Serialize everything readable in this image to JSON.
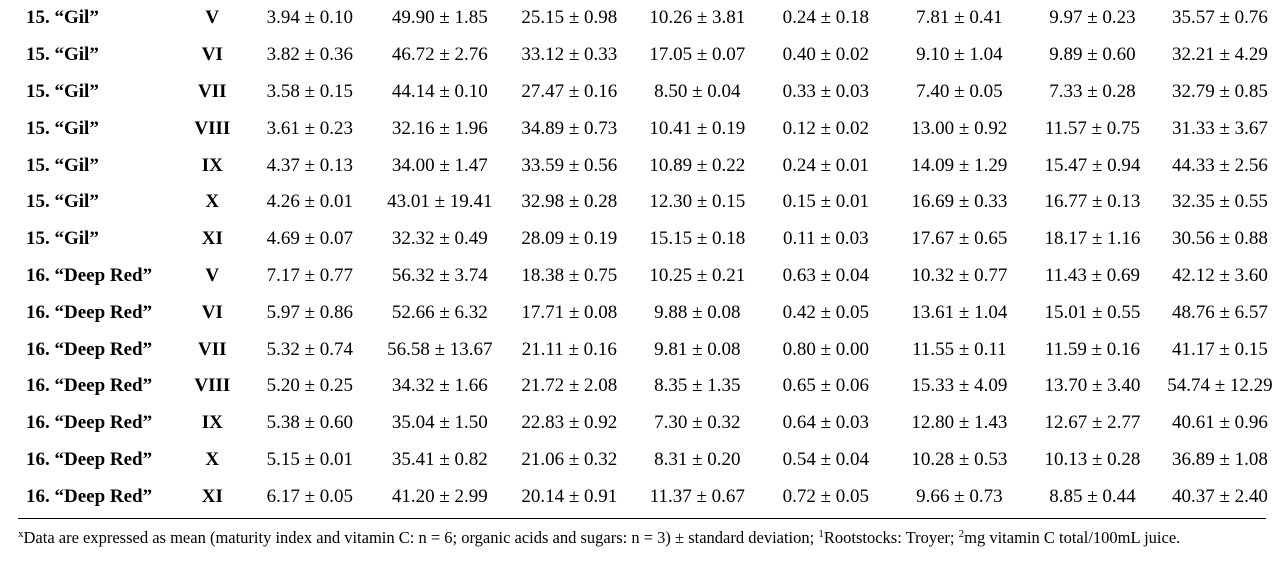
{
  "table": {
    "rows": [
      [
        "15. “Gil”",
        "V",
        "3.94 ± 0.10",
        "49.90 ± 1.85",
        "25.15 ± 0.98",
        "10.26 ± 3.81",
        "0.24 ± 0.18",
        "7.81 ± 0.41",
        "9.97 ± 0.23",
        "35.57 ± 0.76"
      ],
      [
        "15. “Gil”",
        "VI",
        "3.82 ± 0.36",
        "46.72 ± 2.76",
        "33.12 ± 0.33",
        "17.05 ± 0.07",
        "0.40 ± 0.02",
        "9.10 ± 1.04",
        "9.89 ± 0.60",
        "32.21 ± 4.29"
      ],
      [
        "15. “Gil”",
        "VII",
        "3.58 ± 0.15",
        "44.14 ± 0.10",
        "27.47 ± 0.16",
        "8.50 ± 0.04",
        "0.33 ± 0.03",
        "7.40 ± 0.05",
        "7.33 ± 0.28",
        "32.79 ± 0.85"
      ],
      [
        "15. “Gil”",
        "VIII",
        "3.61 ± 0.23",
        "32.16 ± 1.96",
        "34.89 ± 0.73",
        "10.41 ± 0.19",
        "0.12 ± 0.02",
        "13.00 ± 0.92",
        "11.57 ± 0.75",
        "31.33 ± 3.67"
      ],
      [
        "15. “Gil”",
        "IX",
        "4.37 ± 0.13",
        "34.00 ± 1.47",
        "33.59 ± 0.56",
        "10.89 ± 0.22",
        "0.24 ± 0.01",
        "14.09 ± 1.29",
        "15.47 ± 0.94",
        "44.33 ± 2.56"
      ],
      [
        "15. “Gil”",
        "X",
        "4.26 ± 0.01",
        "43.01 ± 19.41",
        "32.98 ± 0.28",
        "12.30 ± 0.15",
        "0.15 ± 0.01",
        "16.69 ± 0.33",
        "16.77 ± 0.13",
        "32.35 ± 0.55"
      ],
      [
        "15. “Gil”",
        "XI",
        "4.69 ± 0.07",
        "32.32 ± 0.49",
        "28.09 ± 0.19",
        "15.15 ± 0.18",
        "0.11 ± 0.03",
        "17.67 ± 0.65",
        "18.17 ± 1.16",
        "30.56 ± 0.88"
      ],
      [
        "16. “Deep Red”",
        "V",
        "7.17 ± 0.77",
        "56.32 ± 3.74",
        "18.38 ± 0.75",
        "10.25 ± 0.21",
        "0.63 ± 0.04",
        "10.32 ± 0.77",
        "11.43 ± 0.69",
        "42.12 ± 3.60"
      ],
      [
        "16. “Deep Red”",
        "VI",
        "5.97 ± 0.86",
        "52.66 ± 6.32",
        "17.71 ± 0.08",
        "9.88 ± 0.08",
        "0.42 ± 0.05",
        "13.61 ± 1.04",
        "15.01 ± 0.55",
        "48.76 ± 6.57"
      ],
      [
        "16. “Deep Red”",
        "VII",
        "5.32 ± 0.74",
        "56.58 ± 13.67",
        "21.11 ± 0.16",
        "9.81 ± 0.08",
        "0.80 ± 0.00",
        "11.55 ± 0.11",
        "11.59 ± 0.16",
        "41.17 ± 0.15"
      ],
      [
        "16. “Deep Red”",
        "VIII",
        "5.20 ± 0.25",
        "34.32 ± 1.66",
        "21.72 ± 2.08",
        "8.35 ± 1.35",
        "0.65 ± 0.06",
        "15.33 ± 4.09",
        "13.70 ± 3.40",
        "54.74 ± 12.29"
      ],
      [
        "16. “Deep Red”",
        "IX",
        "5.38 ± 0.60",
        "35.04 ± 1.50",
        "22.83 ± 0.92",
        "7.30 ± 0.32",
        "0.64 ± 0.03",
        "12.80 ± 1.43",
        "12.67 ± 2.77",
        "40.61 ± 0.96"
      ],
      [
        "16. “Deep Red”",
        "X",
        "5.15 ± 0.01",
        "35.41 ± 0.82",
        "21.06 ± 0.32",
        "8.31 ± 0.20",
        "0.54 ± 0.04",
        "10.28 ± 0.53",
        "10.13 ± 0.28",
        "36.89 ± 1.08"
      ],
      [
        "16. “Deep Red”",
        "XI",
        "6.17 ± 0.05",
        "41.20 ± 2.99",
        "20.14 ± 0.91",
        "11.37 ± 0.67",
        "0.72 ± 0.05",
        "9.66 ± 0.73",
        "8.85 ± 0.44",
        "40.37 ± 2.40"
      ]
    ]
  },
  "footnote": {
    "mark_x": "x",
    "text_1": "Data are expressed as mean (maturity index and vitamin C: n = 6; organic acids and sugars: n = 3) ± standard deviation; ",
    "mark_1": "1",
    "text_2": "Rootstocks: Troyer; ",
    "mark_2": "2",
    "text_3": "mg vitamin C total/100mL juice."
  }
}
